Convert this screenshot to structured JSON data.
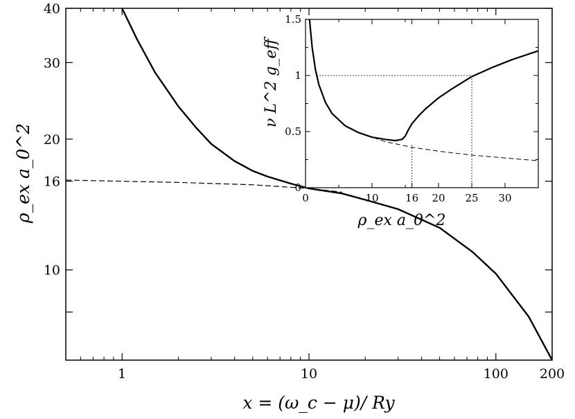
{
  "chart_data": [
    {
      "type": "line",
      "panel": "main",
      "xlabel": "x = (ω_c − μ)/ Ry",
      "ylabel": "ρ_ex a_0^2",
      "xscale": "log",
      "yscale": "log",
      "xlim": [
        0.5,
        200
      ],
      "ylim": [
        6.2,
        40
      ],
      "xticks": [
        1,
        10,
        100,
        200
      ],
      "xtick_labels": [
        "1",
        "10",
        "100",
        "200"
      ],
      "yticks": [
        10,
        16,
        20,
        30,
        40
      ],
      "ytick_labels": [
        "10",
        "16",
        "20",
        "30",
        "40"
      ],
      "grid": false,
      "series": [
        {
          "style": "solid",
          "x": [
            1.0,
            1.2,
            1.5,
            2.0,
            2.5,
            3.0,
            4.0,
            5.0,
            6.0,
            8.0,
            10.0,
            15.0,
            20.0,
            30.0,
            50.0,
            75.0,
            100.0,
            150.0,
            200.0
          ],
          "y": [
            40.0,
            34.0,
            28.5,
            23.8,
            21.2,
            19.5,
            17.8,
            16.9,
            16.4,
            15.8,
            15.4,
            15.0,
            14.5,
            13.8,
            12.5,
            11.0,
            9.8,
            7.8,
            6.2
          ]
        },
        {
          "style": "dashed",
          "x": [
            0.5,
            1.0,
            2.0,
            5.0,
            10.0,
            15.0
          ],
          "y": [
            16.1,
            16.0,
            15.9,
            15.7,
            15.4,
            15.1
          ]
        }
      ]
    },
    {
      "type": "line",
      "panel": "inset",
      "xlabel": "ρ_ex a_0^2",
      "ylabel": "ν L^2 g_eff",
      "xlim": [
        0,
        35
      ],
      "ylim": [
        0,
        1.5
      ],
      "xticks": [
        0,
        10,
        16,
        20,
        25,
        30
      ],
      "xtick_labels": [
        "0",
        "10",
        "16",
        "20",
        "25",
        "30"
      ],
      "yticks": [
        0,
        0.5,
        1,
        1.5
      ],
      "ytick_labels": [
        "0",
        "0.5",
        "1",
        "1.5"
      ],
      "grid": false,
      "reference_lines": [
        {
          "orientation": "horizontal",
          "y": 1,
          "x_range": [
            1.7,
            25
          ]
        },
        {
          "orientation": "vertical",
          "x": 16,
          "y_range": [
            0,
            0.39
          ]
        },
        {
          "orientation": "vertical",
          "x": 25,
          "y_range": [
            0,
            1
          ]
        }
      ],
      "series": [
        {
          "style": "solid",
          "x": [
            0.6,
            1.0,
            1.5,
            2.0,
            3.0,
            4.0,
            6.0,
            8.0,
            10.0,
            12.0,
            13.5,
            14.5,
            15.0,
            15.5,
            16.0,
            17.0,
            18.0,
            20.0,
            22.0,
            25.0,
            28.0,
            31.0,
            35.0
          ],
          "y": [
            1.5,
            1.25,
            1.05,
            0.92,
            0.76,
            0.66,
            0.55,
            0.49,
            0.45,
            0.43,
            0.42,
            0.43,
            0.46,
            0.52,
            0.57,
            0.64,
            0.7,
            0.8,
            0.88,
            0.99,
            1.07,
            1.14,
            1.22
          ]
        },
        {
          "style": "dashed",
          "x": [
            6.0,
            8.0,
            10.0,
            12.0,
            14.0,
            16.0,
            20.0,
            25.0,
            30.0,
            35.0
          ],
          "y": [
            0.55,
            0.49,
            0.45,
            0.41,
            0.385,
            0.36,
            0.325,
            0.29,
            0.265,
            0.24
          ]
        }
      ]
    }
  ]
}
